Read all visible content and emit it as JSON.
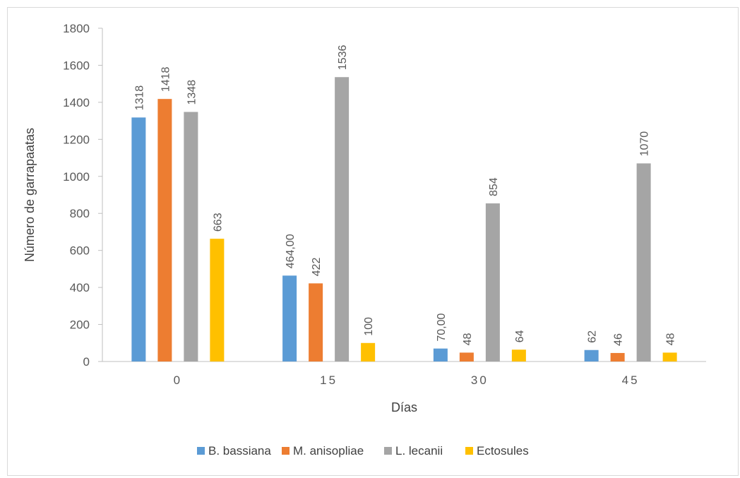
{
  "chart_data": {
    "type": "bar",
    "title": "",
    "xlabel": "Días",
    "ylabel": "Número de garrapaatas",
    "ylim": [
      0,
      1800
    ],
    "yticks": [
      0,
      200,
      400,
      600,
      800,
      1000,
      1200,
      1400,
      1600,
      1800
    ],
    "categories": [
      "0",
      "15",
      "30",
      "45"
    ],
    "grid": false,
    "legend_position": "bottom",
    "series": [
      {
        "name": "B. bassiana",
        "color": "#5b9bd5",
        "values": [
          1318,
          464,
          70,
          62
        ],
        "labels": [
          "1318",
          "464,00",
          "70,00",
          "62"
        ]
      },
      {
        "name": "M. anisopliae",
        "color": "#ed7d31",
        "values": [
          1418,
          422,
          48,
          46
        ],
        "labels": [
          "1418",
          "422",
          "48",
          "46"
        ]
      },
      {
        "name": "L. lecanii",
        "color": "#a5a5a5",
        "values": [
          1348,
          1536,
          854,
          1070
        ],
        "labels": [
          "1348",
          "1536",
          "854",
          "1070"
        ]
      },
      {
        "name": "Ectosules",
        "color": "#ffc000",
        "values": [
          663,
          100,
          64,
          48
        ],
        "labels": [
          "663",
          "100",
          "64",
          "48"
        ]
      }
    ]
  }
}
